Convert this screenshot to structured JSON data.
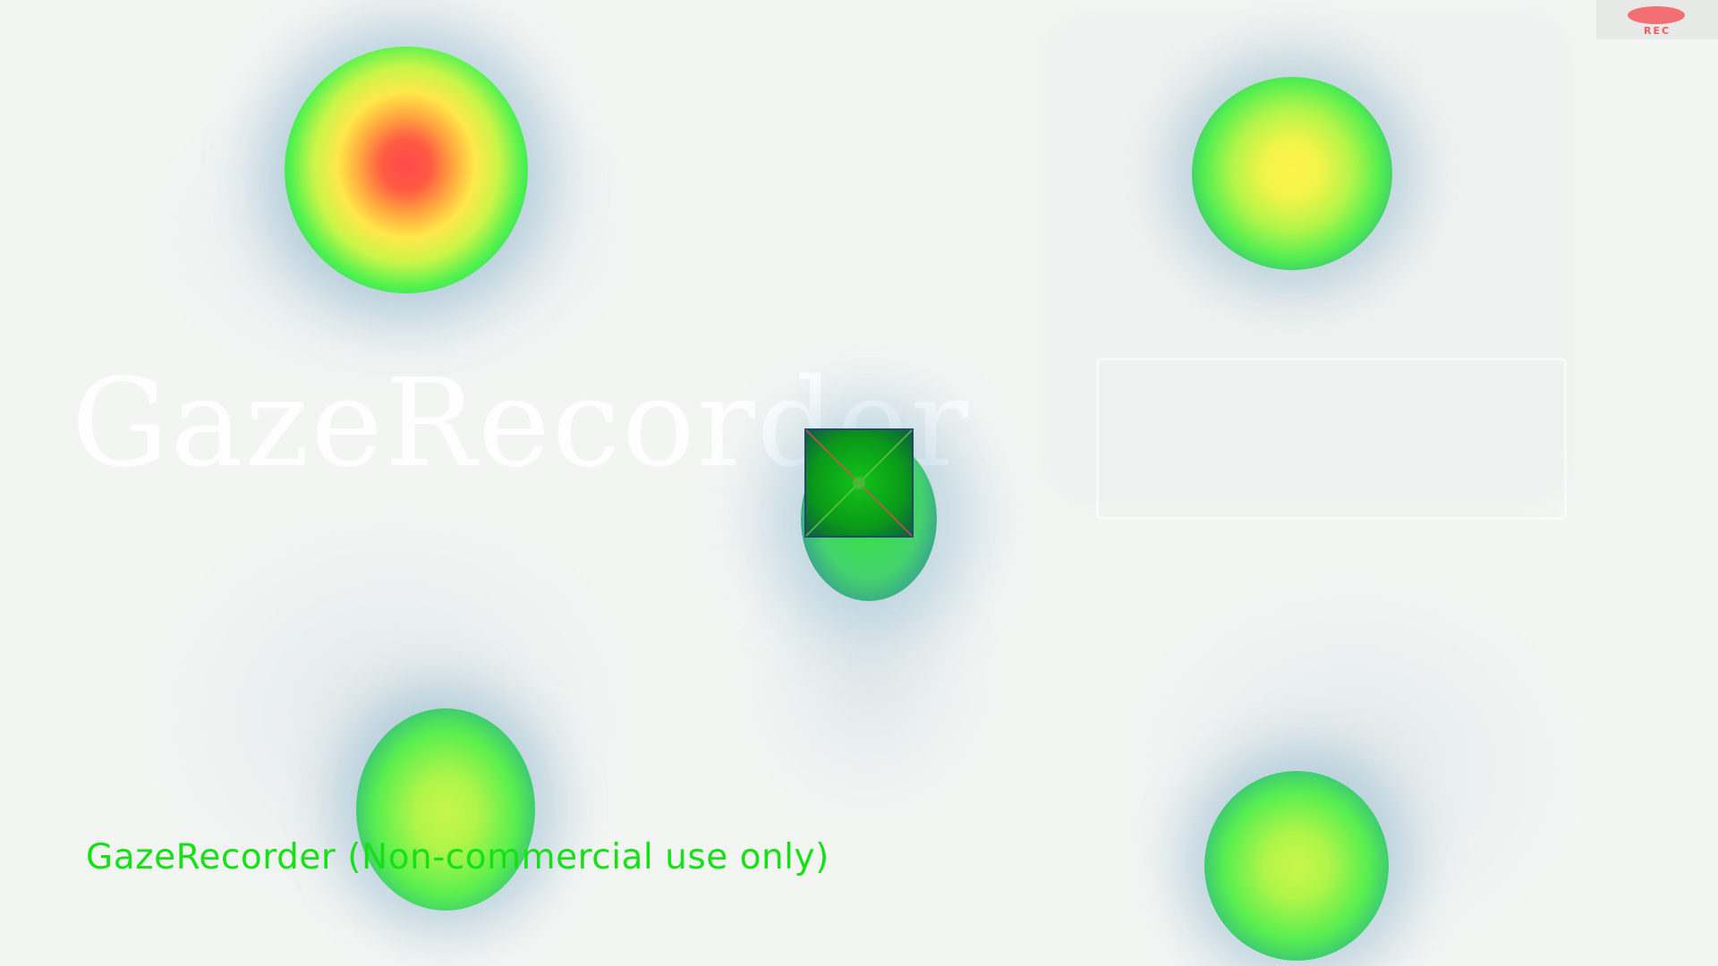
{
  "watermark": {
    "text": "GazeRecorder"
  },
  "recording": {
    "label": "REC",
    "color": "#f27074"
  },
  "caption": {
    "text": "GazeRecorder (Non-commercial use only)",
    "color": "#17e017"
  },
  "heatmap": {
    "colors": [
      "#ff4a4a",
      "#ffe84a",
      "#4ef24f",
      "#34c27b"
    ]
  },
  "calibration_target": {
    "fill": "#0aa912",
    "diagonal_color": "#e8484a"
  }
}
